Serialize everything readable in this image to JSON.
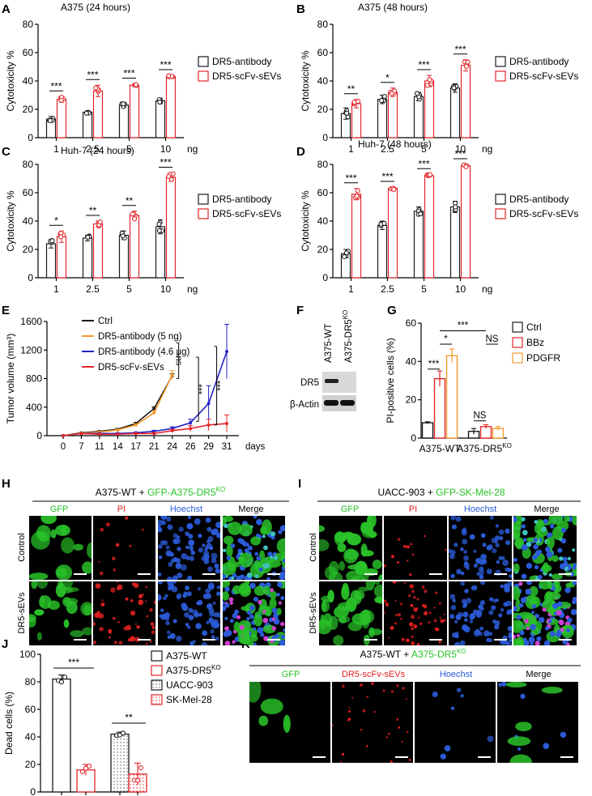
{
  "figure": {
    "colors": {
      "black": "#1a1a1a",
      "red": "#e3262c",
      "orange": "#f29a2e",
      "blue": "#2323c8",
      "green": "#29c229",
      "pi_red": "#e02020",
      "hoechst_blue": "#2b5bd8"
    }
  },
  "chart_data": [
    {
      "id": "A",
      "panel_label": "A",
      "type": "bar",
      "title": "A375 (24 hours)",
      "ylabel": "Cytotoxicity %",
      "x_unit": "ng",
      "ylim": [
        0,
        80
      ],
      "yticks": [
        0,
        20,
        40,
        60,
        80
      ],
      "categories": [
        "1",
        "2.5",
        "5",
        "10"
      ],
      "series": [
        {
          "name": "DR5-antibody",
          "values": [
            13,
            18,
            23,
            26
          ],
          "err": [
            2,
            1,
            1.5,
            2
          ]
        },
        {
          "name": "DR5-scFv-sEVs",
          "values": [
            27,
            33,
            37,
            43
          ],
          "err": [
            2,
            4,
            1,
            1
          ]
        }
      ],
      "significance": [
        "***",
        "***",
        "***",
        "***"
      ]
    },
    {
      "id": "B",
      "panel_label": "B",
      "type": "bar",
      "title": "A375 (48 hours)",
      "ylabel": "Cytotoxicity %",
      "x_unit": "ng",
      "ylim": [
        0,
        80
      ],
      "yticks": [
        0,
        20,
        40,
        60,
        80
      ],
      "categories": [
        "1",
        "2.5",
        "5",
        "10"
      ],
      "series": [
        {
          "name": "DR5-antibody",
          "values": [
            17,
            27,
            29,
            35
          ],
          "err": [
            4,
            3,
            3,
            3
          ]
        },
        {
          "name": "DR5-scFv-sEVs",
          "values": [
            24,
            32,
            40,
            51
          ],
          "err": [
            3,
            3,
            4,
            4
          ]
        }
      ],
      "significance": [
        "**",
        "*",
        "***",
        "***"
      ]
    },
    {
      "id": "C",
      "panel_label": "C",
      "type": "bar",
      "title": "Huh-7 (24 hours)",
      "ylabel": "Cytotoxicity %",
      "x_unit": "ng",
      "ylim": [
        0,
        80
      ],
      "yticks": [
        0,
        20,
        40,
        60,
        80
      ],
      "categories": [
        "1",
        "2.5",
        "5",
        "10"
      ],
      "series": [
        {
          "name": "DR5-antibody",
          "values": [
            24,
            28,
            30,
            36
          ],
          "err": [
            3,
            2,
            3,
            5
          ]
        },
        {
          "name": "DR5-scFv-sEVs",
          "values": [
            29,
            38,
            44,
            71
          ],
          "err": [
            4,
            2,
            3,
            3
          ]
        }
      ],
      "significance": [
        "*",
        "**",
        "**",
        "***"
      ]
    },
    {
      "id": "D",
      "panel_label": "D",
      "type": "bar",
      "title": "Huh-7 (48 hours)",
      "ylabel": "Cytotoxicity %",
      "x_unit": "ng",
      "ylim": [
        0,
        80
      ],
      "yticks": [
        0,
        20,
        40,
        60,
        80
      ],
      "categories": [
        "1",
        "2.5",
        "5",
        "10"
      ],
      "series": [
        {
          "name": "DR5-antibody",
          "values": [
            17,
            37,
            47,
            50
          ],
          "err": [
            3,
            3,
            3,
            4
          ]
        },
        {
          "name": "DR5-scFv-sEVs",
          "values": [
            59,
            63,
            72,
            79
          ],
          "err": [
            4,
            1,
            1,
            1
          ]
        }
      ],
      "significance": [
        "***",
        "***",
        "***",
        "***"
      ]
    },
    {
      "id": "E",
      "panel_label": "E",
      "type": "line",
      "ylabel": "Tumor volume (mm³)",
      "x_unit": "days",
      "ylim": [
        0,
        1600
      ],
      "yticks": [
        0,
        400,
        800,
        1200,
        1600
      ],
      "xticks": [
        "0",
        "7",
        "11",
        "14",
        "17",
        "21",
        "24",
        "26",
        "29",
        "31"
      ],
      "series": [
        {
          "name": "Ctrl",
          "x": [
            0,
            7,
            11,
            14,
            17,
            21,
            24
          ],
          "y": [
            0,
            40,
            60,
            90,
            170,
            380,
            840
          ],
          "err": [
            0,
            5,
            8,
            10,
            15,
            25,
            30
          ]
        },
        {
          "name": "DR5-antibody (5 ng)",
          "x": [
            0,
            7,
            11,
            14,
            17,
            21,
            24
          ],
          "y": [
            0,
            35,
            50,
            80,
            150,
            320,
            850
          ],
          "err": [
            0,
            5,
            8,
            10,
            15,
            25,
            60
          ]
        },
        {
          "name": "DR5-antibody (4.6 μg)",
          "x": [
            0,
            7,
            11,
            14,
            17,
            21,
            24,
            26,
            29,
            31
          ],
          "y": [
            0,
            30,
            30,
            30,
            40,
            60,
            100,
            180,
            450,
            1180
          ],
          "err": [
            0,
            5,
            5,
            8,
            10,
            15,
            25,
            50,
            250,
            380
          ]
        },
        {
          "name": "DR5-scFv-sEVs",
          "x": [
            0,
            7,
            11,
            14,
            17,
            21,
            24,
            26,
            29,
            31
          ],
          "y": [
            0,
            30,
            20,
            20,
            30,
            30,
            70,
            100,
            150,
            170
          ],
          "err": [
            0,
            5,
            5,
            5,
            8,
            10,
            20,
            40,
            80,
            120
          ]
        }
      ],
      "brackets": [
        "ns",
        "***",
        "***"
      ]
    },
    {
      "id": "G",
      "panel_label": "G",
      "type": "bar",
      "ylabel": "PI-positive cells (%)",
      "ylim": [
        0,
        60
      ],
      "yticks": [
        0,
        20,
        40,
        60
      ],
      "categories": [
        "A375-WT",
        "A375-DR5KO"
      ],
      "series": [
        {
          "name": "Ctrl",
          "values": [
            8,
            3.5
          ],
          "err": [
            0.5,
            1.5
          ]
        },
        {
          "name": "BBz",
          "values": [
            31,
            6
          ],
          "err": [
            4,
            1
          ]
        },
        {
          "name": "PDGFR",
          "values": [
            43,
            5
          ],
          "err": [
            3.5,
            1
          ]
        }
      ],
      "significance": [
        "***",
        "*",
        "***",
        "NS",
        "NS"
      ]
    },
    {
      "id": "J",
      "panel_label": "J",
      "type": "bar",
      "ylabel": "Dead cells (%)",
      "ylim": [
        0,
        100
      ],
      "yticks": [
        0,
        20,
        40,
        60,
        80,
        100
      ],
      "categories": [
        "A375-WT",
        "A375-DR5KO",
        "UACC-903",
        "SK-Mel-28"
      ],
      "values": [
        82,
        16,
        42,
        13
      ],
      "err": [
        3,
        4,
        1.5,
        8
      ],
      "significance": [
        "***",
        "**"
      ]
    }
  ],
  "panels": {
    "F": {
      "label": "F",
      "lanes": [
        "A375-WT",
        "A375-DR5",
        "KO"
      ],
      "rows": [
        "DR5",
        "β-Actin"
      ]
    },
    "H": {
      "label": "H",
      "title_prefix": "A375-WT + ",
      "title_green": "GFP-A375-DR5",
      "title_sup": "KO",
      "columns": [
        "GFP",
        "PI",
        "Hoechst",
        "Merge"
      ],
      "rows": [
        "Control",
        "DR5-sEVs"
      ]
    },
    "I": {
      "label": "I",
      "title_prefix": "UACC-903 + ",
      "title_green": "GFP-SK-Mel-28",
      "columns": [
        "GFP",
        "PI",
        "Hoechst",
        "Merge"
      ],
      "rows": [
        "Control",
        "DR5-sEVs"
      ]
    },
    "K": {
      "label": "K",
      "title_prefix": "A375-WT + ",
      "title_green": "A375-DR5",
      "title_sup": "KO",
      "columns": [
        "GFP",
        "DR5-scFv-sEVs",
        "Hoechst",
        "Merge"
      ]
    }
  },
  "legends": {
    "ab": [
      "DR5-antibody",
      "DR5-scFv-sEVs"
    ],
    "e": [
      "Ctrl",
      "DR5-antibody (5 ng)",
      "DR5-antibody (4.6 μg)",
      "DR5-scFv-sEVs"
    ],
    "g": [
      "Ctrl",
      "BBz",
      "PDGFR"
    ],
    "j": [
      "A375-WT",
      "A375-DR5",
      "UACC-903",
      "SK-Mel-28"
    ]
  },
  "g_x_labels": {
    "wt": "A375-WT",
    "ko": "A375-DR5",
    "ko_sup": "KO"
  },
  "j_legend_sup": "KO"
}
